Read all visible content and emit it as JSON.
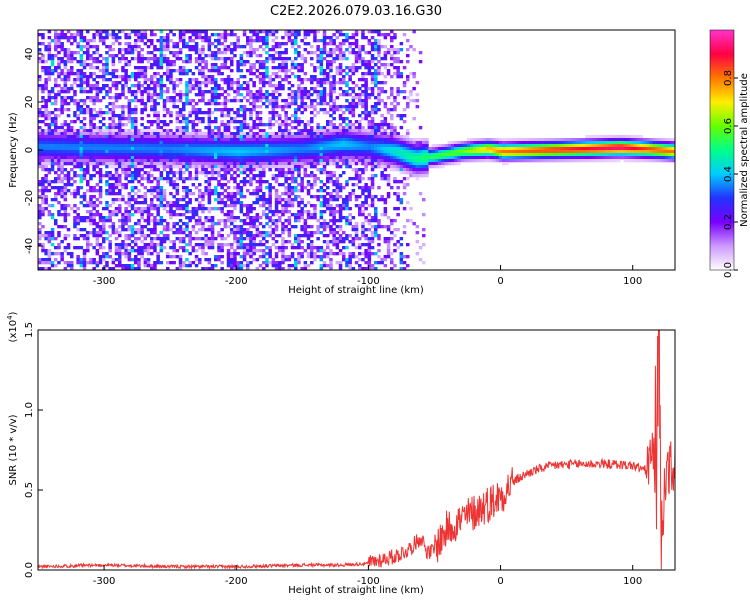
{
  "chart_data": [
    {
      "type": "heatmap",
      "title": "C2E2.2026.079.03.16.G30",
      "xlabel": "Height of straight line (km)",
      "ylabel": "Frequency (Hz)",
      "xlim": [
        -350,
        132
      ],
      "ylim": [
        -50,
        50
      ],
      "xticks": [
        -300,
        -200,
        -100,
        0,
        100
      ],
      "yticks": [
        -40,
        -20,
        0,
        20,
        40
      ],
      "colorbar": {
        "label": "Normalized spectral amplitude",
        "range": [
          0.0,
          1.0
        ],
        "ticks": [
          "0.0",
          "0.2",
          "0.4",
          "0.6",
          "0.8"
        ],
        "colors": [
          "#ffffff",
          "#cc99ff",
          "#7700ff",
          "#2233ff",
          "#00ccff",
          "#00ff88",
          "#66ff00",
          "#ffee00",
          "#ff7700",
          "#ff0044",
          "#ff33cc"
        ]
      },
      "ridge": {
        "x": [
          -350,
          -250,
          -200,
          -150,
          -120,
          -100,
          -80,
          -65,
          -50,
          -30,
          -10,
          0,
          30,
          60,
          90,
          110,
          132
        ],
        "freq": [
          2,
          1,
          0,
          1,
          3,
          2,
          0,
          -3,
          -2,
          0,
          1,
          0,
          0.5,
          1,
          1.5,
          1,
          0
        ],
        "amplitude": [
          0.35,
          0.35,
          0.4,
          0.35,
          0.4,
          0.35,
          0.45,
          0.5,
          0.55,
          0.6,
          0.75,
          0.8,
          0.85,
          0.9,
          0.95,
          0.85,
          0.8
        ]
      }
    },
    {
      "type": "line",
      "xlabel": "Height of straight line (km)",
      "ylabel": "SNR (10 * v/v)",
      "scale_label": "(x10",
      "scale_exponent": "4",
      "xlim": [
        -350,
        132
      ],
      "ylim": [
        0.0,
        1.5
      ],
      "xticks": [
        -300,
        -200,
        -100,
        0,
        100
      ],
      "yticks": [
        "0.0",
        "0.5",
        "1.0",
        "1.5"
      ],
      "series": [
        {
          "name": "SNR",
          "color": "#ee3333",
          "x": [
            -350,
            -300,
            -250,
            -200,
            -150,
            -120,
            -100,
            -80,
            -70,
            -60,
            -55,
            -50,
            -40,
            -30,
            -20,
            -10,
            0,
            10,
            20,
            30,
            40,
            60,
            80,
            100,
            110,
            115,
            118,
            120,
            122,
            125,
            132
          ],
          "y": [
            0.02,
            0.03,
            0.02,
            0.02,
            0.03,
            0.03,
            0.04,
            0.08,
            0.12,
            0.2,
            0.1,
            0.12,
            0.25,
            0.3,
            0.35,
            0.4,
            0.45,
            0.55,
            0.6,
            0.63,
            0.65,
            0.66,
            0.66,
            0.65,
            0.62,
            0.7,
            0.6,
            1.5,
            0.1,
            0.62,
            0.6
          ]
        }
      ]
    }
  ]
}
